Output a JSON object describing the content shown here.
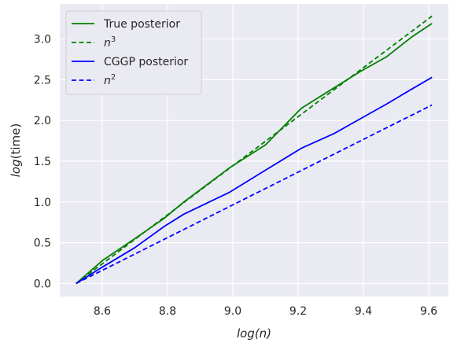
{
  "chart_data": {
    "type": "line",
    "xlabel": "log(n)",
    "ylabel": "log(time)",
    "xlim": [
      8.47,
      9.66
    ],
    "ylim": [
      -0.16,
      3.43
    ],
    "xticks": [
      8.6,
      8.8,
      9.0,
      9.2,
      9.4,
      9.6
    ],
    "yticks": [
      0.0,
      0.5,
      1.0,
      1.5,
      2.0,
      2.5,
      3.0
    ],
    "xtick_labels": [
      "8.6",
      "8.8",
      "9.0",
      "9.2",
      "9.4",
      "9.6"
    ],
    "ytick_labels": [
      "0.0",
      "0.5",
      "1.0",
      "1.5",
      "2.0",
      "2.5",
      "3.0"
    ],
    "grid": true,
    "legend_position": "top-left",
    "series": [
      {
        "name": "True posterior",
        "label_base": "True posterior",
        "label_sup": "",
        "color": "#008000",
        "dash": "solid",
        "x": [
          8.52,
          8.6,
          8.7,
          8.79,
          8.85,
          8.99,
          9.1,
          9.21,
          9.31,
          9.39,
          9.47,
          9.55,
          9.61
        ],
        "y": [
          0.0,
          0.28,
          0.55,
          0.8,
          1.0,
          1.42,
          1.7,
          2.15,
          2.4,
          2.6,
          2.78,
          3.03,
          3.19
        ]
      },
      {
        "name": "n^3",
        "label_base": "n",
        "label_sup": "3",
        "color": "#008000",
        "dash": "dashed",
        "x": [
          8.52,
          9.61
        ],
        "y": [
          0.0,
          3.28
        ]
      },
      {
        "name": "CGGP posterior",
        "label_base": "CGGP posterior",
        "label_sup": "",
        "color": "#0000ff",
        "dash": "solid",
        "x": [
          8.52,
          8.6,
          8.7,
          8.79,
          8.85,
          8.99,
          9.1,
          9.21,
          9.31,
          9.39,
          9.47,
          9.55,
          9.61
        ],
        "y": [
          0.0,
          0.2,
          0.44,
          0.7,
          0.85,
          1.12,
          1.39,
          1.66,
          1.84,
          2.02,
          2.2,
          2.39,
          2.53
        ]
      },
      {
        "name": "n^2",
        "label_base": "n",
        "label_sup": "2",
        "color": "#0000ff",
        "dash": "dashed",
        "x": [
          8.52,
          9.61
        ],
        "y": [
          0.0,
          2.19
        ]
      }
    ]
  }
}
